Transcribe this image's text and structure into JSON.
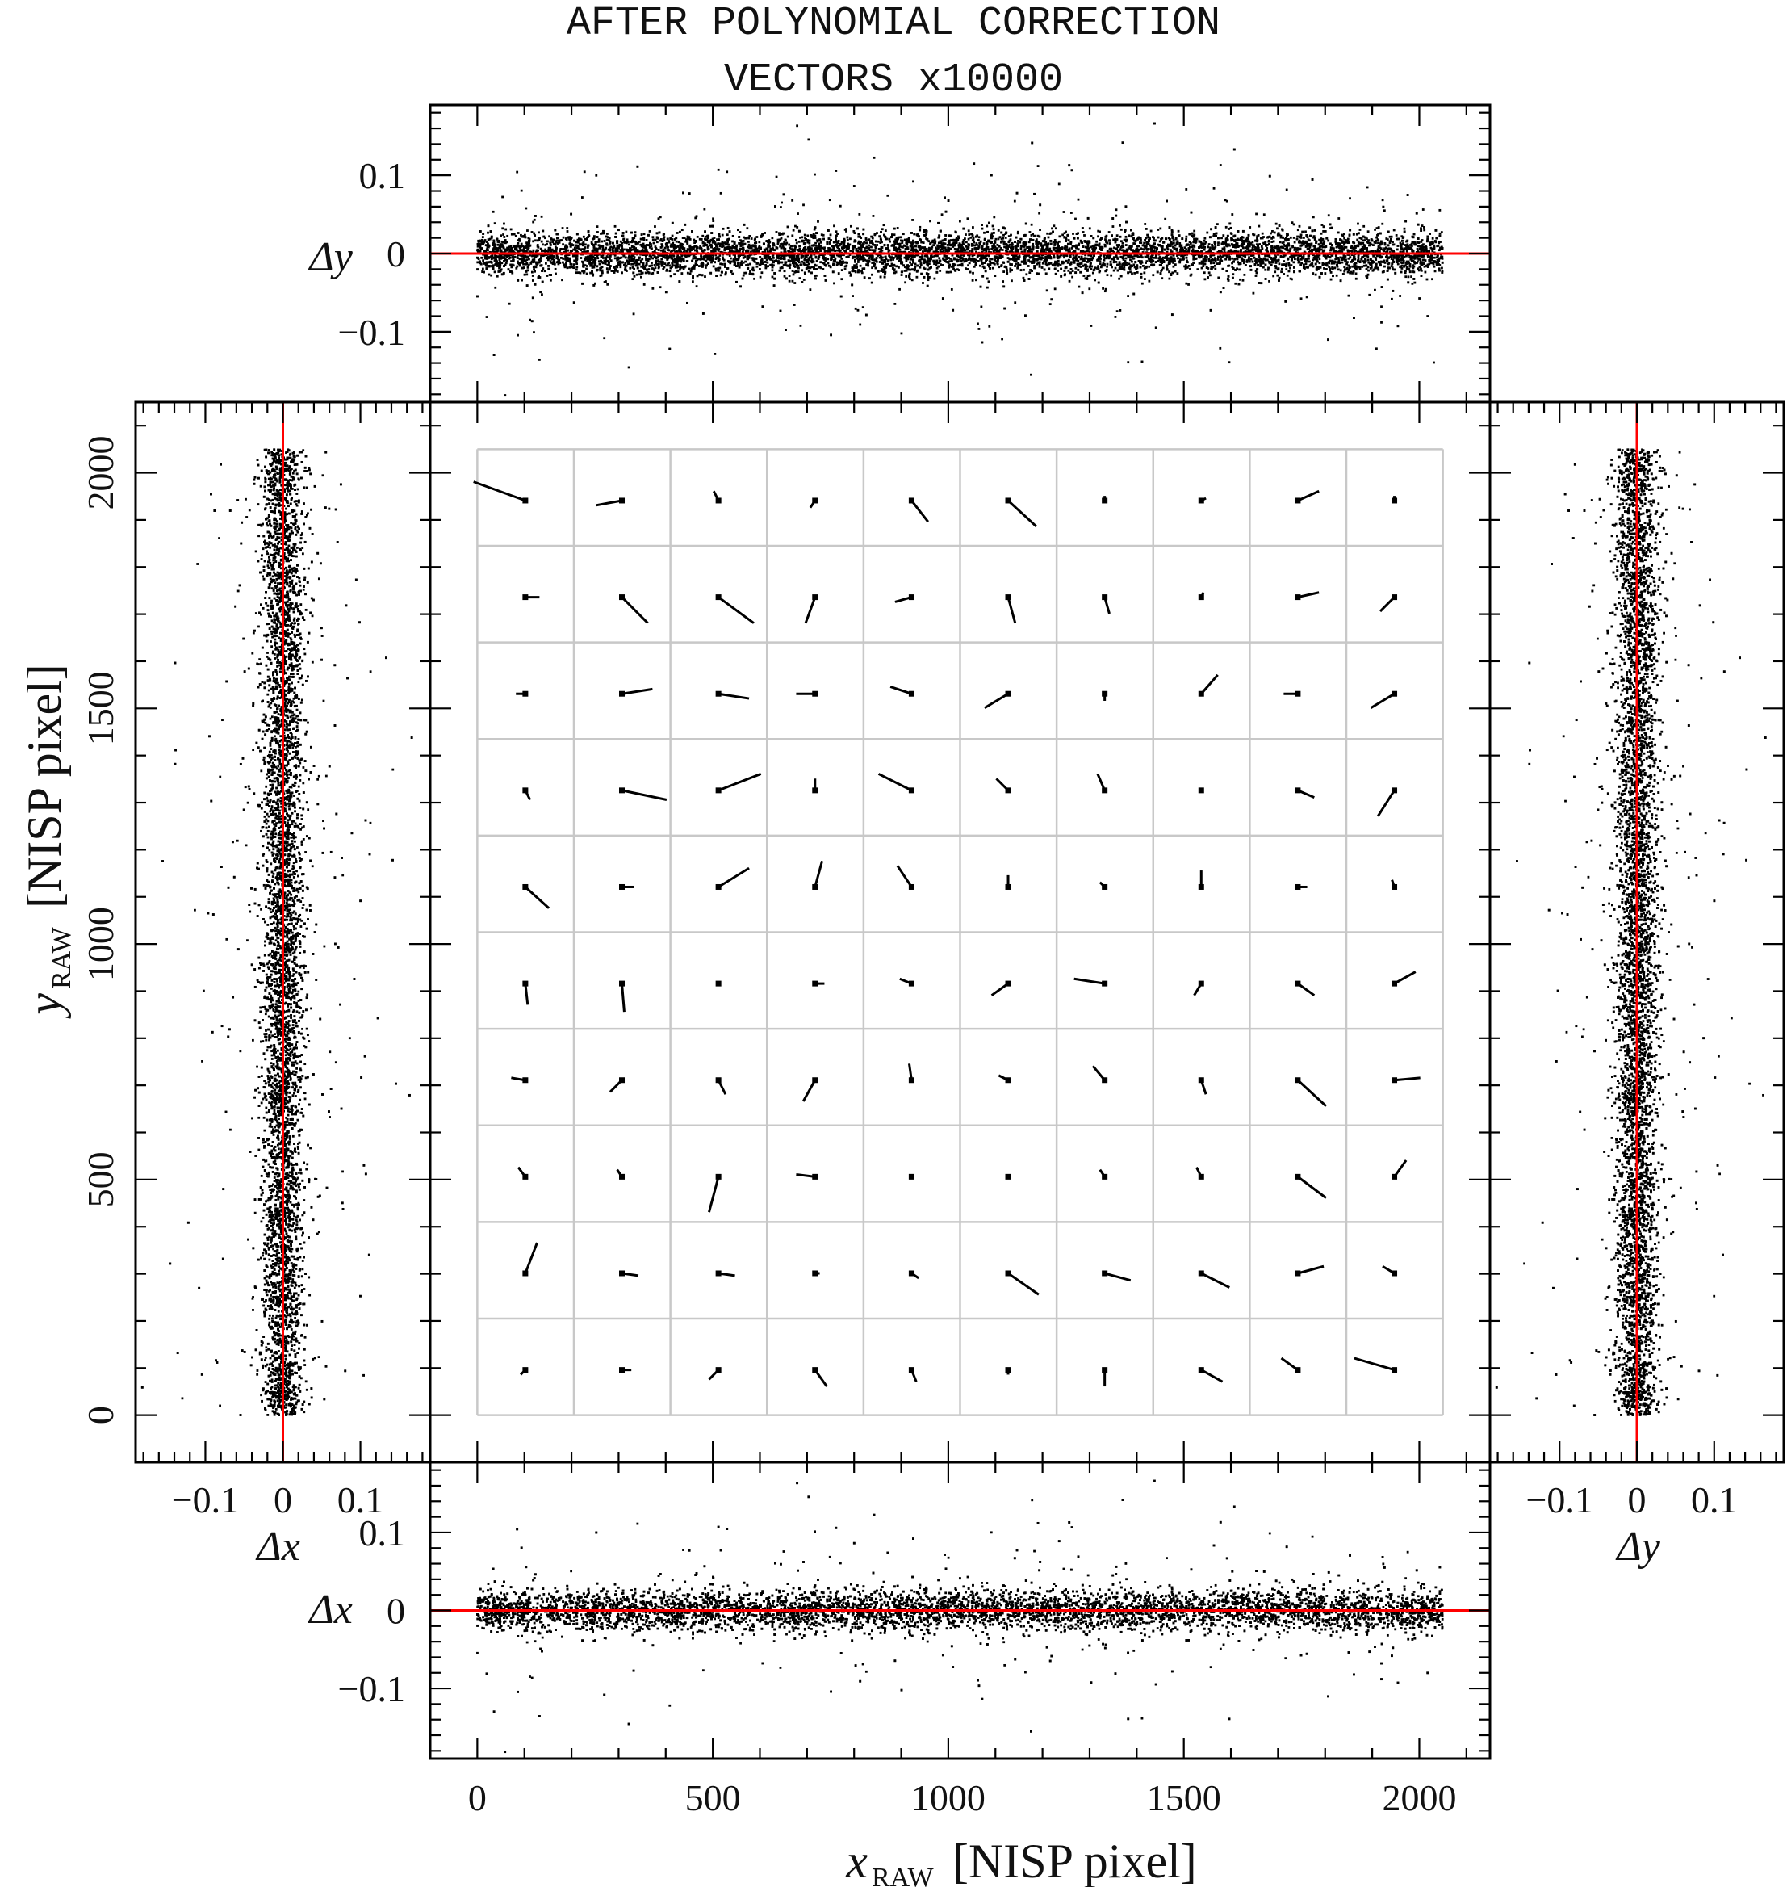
{
  "chart_data": {
    "type": "scatter",
    "title": [
      "AFTER POLYNOMIAL CORRECTION",
      "VECTORS x10000"
    ],
    "axis_color": "#000000",
    "reference_line_color": "#ff0000",
    "grid_color": "#c8c8c8",
    "main": {
      "type": "vector-field",
      "xlabel": "x",
      "xlabel_sub": "RAW",
      "xlabel_unit": "[NISP pixel]",
      "ylabel": "y",
      "ylabel_sub": "RAW",
      "ylabel_unit": "[NISP pixel]",
      "xlim": [
        -100,
        2150
      ],
      "ylim": [
        -100,
        2150
      ],
      "xticks": [
        0,
        500,
        1000,
        1500,
        2000
      ],
      "yticks": [
        0,
        500,
        1000,
        1500,
        2000
      ],
      "grid": true,
      "grid_x": [
        0,
        205,
        410,
        615,
        820,
        1025,
        1230,
        1435,
        1640,
        1845,
        2050
      ],
      "grid_y": [
        0,
        205,
        410,
        615,
        820,
        1025,
        1230,
        1435,
        1640,
        1845,
        2050
      ],
      "vector_scale": 10000,
      "vectors": [
        {
          "x": 102,
          "y": 1941,
          "dx": -0.011,
          "dy": 0.004
        },
        {
          "x": 307,
          "y": 1941,
          "dx": -0.0055,
          "dy": -0.001
        },
        {
          "x": 512,
          "y": 1941,
          "dx": -0.001,
          "dy": 0.002
        },
        {
          "x": 717,
          "y": 1941,
          "dx": -0.001,
          "dy": -0.0015
        },
        {
          "x": 922,
          "y": 1941,
          "dx": 0.0035,
          "dy": -0.0045
        },
        {
          "x": 1127,
          "y": 1941,
          "dx": 0.006,
          "dy": -0.0055
        },
        {
          "x": 1332,
          "y": 1941,
          "dx": 0.0,
          "dy": 0.001
        },
        {
          "x": 1537,
          "y": 1941,
          "dx": 0.001,
          "dy": 0.0005
        },
        {
          "x": 1742,
          "y": 1941,
          "dx": 0.0045,
          "dy": 0.002
        },
        {
          "x": 1947,
          "y": 1941,
          "dx": 0.0,
          "dy": 0.001
        },
        {
          "x": 102,
          "y": 1736,
          "dx": 0.003,
          "dy": 0.0
        },
        {
          "x": 307,
          "y": 1736,
          "dx": 0.0055,
          "dy": -0.0055
        },
        {
          "x": 512,
          "y": 1736,
          "dx": 0.0075,
          "dy": -0.0055
        },
        {
          "x": 717,
          "y": 1736,
          "dx": -0.002,
          "dy": -0.0055
        },
        {
          "x": 922,
          "y": 1736,
          "dx": -0.0035,
          "dy": -0.001
        },
        {
          "x": 1127,
          "y": 1736,
          "dx": 0.0015,
          "dy": -0.0055
        },
        {
          "x": 1332,
          "y": 1736,
          "dx": 0.001,
          "dy": -0.0035
        },
        {
          "x": 1537,
          "y": 1736,
          "dx": 0.0005,
          "dy": 0.001
        },
        {
          "x": 1742,
          "y": 1736,
          "dx": 0.0045,
          "dy": 0.001
        },
        {
          "x": 1947,
          "y": 1736,
          "dx": -0.003,
          "dy": -0.003
        },
        {
          "x": 102,
          "y": 1531,
          "dx": -0.002,
          "dy": 0.0
        },
        {
          "x": 307,
          "y": 1531,
          "dx": 0.0065,
          "dy": 0.001
        },
        {
          "x": 512,
          "y": 1531,
          "dx": 0.0065,
          "dy": -0.001
        },
        {
          "x": 717,
          "y": 1531,
          "dx": -0.004,
          "dy": 0.0
        },
        {
          "x": 922,
          "y": 1531,
          "dx": -0.0045,
          "dy": 0.0015
        },
        {
          "x": 1127,
          "y": 1531,
          "dx": -0.005,
          "dy": -0.003
        },
        {
          "x": 1332,
          "y": 1531,
          "dx": 0.0,
          "dy": -0.0015
        },
        {
          "x": 1537,
          "y": 1531,
          "dx": 0.0035,
          "dy": 0.004
        },
        {
          "x": 1742,
          "y": 1531,
          "dx": -0.003,
          "dy": 0.0
        },
        {
          "x": 1947,
          "y": 1531,
          "dx": -0.005,
          "dy": -0.003
        },
        {
          "x": 102,
          "y": 1326,
          "dx": 0.001,
          "dy": -0.002
        },
        {
          "x": 307,
          "y": 1326,
          "dx": 0.0095,
          "dy": -0.002
        },
        {
          "x": 512,
          "y": 1326,
          "dx": 0.009,
          "dy": 0.0035
        },
        {
          "x": 717,
          "y": 1326,
          "dx": 0.0,
          "dy": 0.0025
        },
        {
          "x": 922,
          "y": 1326,
          "dx": -0.007,
          "dy": 0.0035
        },
        {
          "x": 1127,
          "y": 1326,
          "dx": -0.0025,
          "dy": 0.0025
        },
        {
          "x": 1332,
          "y": 1326,
          "dx": -0.0015,
          "dy": 0.0035
        },
        {
          "x": 1537,
          "y": 1326,
          "dx": 0.0,
          "dy": 0.0005
        },
        {
          "x": 1742,
          "y": 1326,
          "dx": 0.0035,
          "dy": -0.0015
        },
        {
          "x": 1947,
          "y": 1326,
          "dx": -0.0035,
          "dy": -0.0055
        },
        {
          "x": 102,
          "y": 1121,
          "dx": 0.005,
          "dy": -0.0045
        },
        {
          "x": 307,
          "y": 1121,
          "dx": 0.0025,
          "dy": 0.0
        },
        {
          "x": 512,
          "y": 1121,
          "dx": 0.0065,
          "dy": 0.004
        },
        {
          "x": 717,
          "y": 1121,
          "dx": 0.0015,
          "dy": 0.0055
        },
        {
          "x": 922,
          "y": 1121,
          "dx": -0.003,
          "dy": 0.0045
        },
        {
          "x": 1127,
          "y": 1121,
          "dx": 0.0,
          "dy": 0.0025
        },
        {
          "x": 1332,
          "y": 1121,
          "dx": -0.001,
          "dy": 0.001
        },
        {
          "x": 1537,
          "y": 1121,
          "dx": 0.0,
          "dy": 0.0035
        },
        {
          "x": 1742,
          "y": 1121,
          "dx": 0.002,
          "dy": 0.0
        },
        {
          "x": 1947,
          "y": 1121,
          "dx": -0.0005,
          "dy": 0.0015
        },
        {
          "x": 102,
          "y": 916,
          "dx": 0.0005,
          "dy": -0.0045
        },
        {
          "x": 307,
          "y": 916,
          "dx": 0.0005,
          "dy": -0.006
        },
        {
          "x": 512,
          "y": 916,
          "dx": 0.0,
          "dy": 0.0005
        },
        {
          "x": 717,
          "y": 916,
          "dx": 0.002,
          "dy": 0.0
        },
        {
          "x": 922,
          "y": 916,
          "dx": -0.0025,
          "dy": 0.001
        },
        {
          "x": 1127,
          "y": 916,
          "dx": -0.0035,
          "dy": -0.0025
        },
        {
          "x": 1332,
          "y": 916,
          "dx": -0.0065,
          "dy": 0.001
        },
        {
          "x": 1537,
          "y": 916,
          "dx": -0.0015,
          "dy": -0.0025
        },
        {
          "x": 1742,
          "y": 916,
          "dx": 0.0035,
          "dy": -0.0025
        },
        {
          "x": 1947,
          "y": 916,
          "dx": 0.0045,
          "dy": 0.0025
        },
        {
          "x": 102,
          "y": 711,
          "dx": -0.003,
          "dy": 0.0005
        },
        {
          "x": 307,
          "y": 711,
          "dx": -0.0025,
          "dy": -0.0025
        },
        {
          "x": 512,
          "y": 711,
          "dx": 0.0015,
          "dy": -0.003
        },
        {
          "x": 717,
          "y": 711,
          "dx": -0.0025,
          "dy": -0.0045
        },
        {
          "x": 922,
          "y": 711,
          "dx": -0.0005,
          "dy": 0.0035
        },
        {
          "x": 1127,
          "y": 711,
          "dx": -0.002,
          "dy": 0.001
        },
        {
          "x": 1332,
          "y": 711,
          "dx": -0.0025,
          "dy": 0.003
        },
        {
          "x": 1537,
          "y": 711,
          "dx": 0.001,
          "dy": -0.003
        },
        {
          "x": 1742,
          "y": 711,
          "dx": 0.006,
          "dy": -0.0055
        },
        {
          "x": 1947,
          "y": 711,
          "dx": 0.0055,
          "dy": 0.0005
        },
        {
          "x": 102,
          "y": 506,
          "dx": -0.0015,
          "dy": 0.002
        },
        {
          "x": 307,
          "y": 506,
          "dx": -0.001,
          "dy": 0.0015
        },
        {
          "x": 512,
          "y": 506,
          "dx": -0.002,
          "dy": -0.0075
        },
        {
          "x": 717,
          "y": 506,
          "dx": -0.004,
          "dy": 0.0005
        },
        {
          "x": 922,
          "y": 506,
          "dx": 0.0,
          "dy": 0.0
        },
        {
          "x": 1127,
          "y": 506,
          "dx": 0.0,
          "dy": 0.0
        },
        {
          "x": 1332,
          "y": 506,
          "dx": -0.001,
          "dy": 0.0015
        },
        {
          "x": 1537,
          "y": 506,
          "dx": -0.001,
          "dy": 0.002
        },
        {
          "x": 1742,
          "y": 506,
          "dx": 0.006,
          "dy": -0.0045
        },
        {
          "x": 1947,
          "y": 506,
          "dx": 0.0025,
          "dy": 0.0035
        },
        {
          "x": 102,
          "y": 301,
          "dx": 0.0025,
          "dy": 0.0065
        },
        {
          "x": 307,
          "y": 301,
          "dx": 0.0035,
          "dy": -0.0005
        },
        {
          "x": 512,
          "y": 301,
          "dx": 0.0035,
          "dy": -0.0005
        },
        {
          "x": 717,
          "y": 301,
          "dx": 0.001,
          "dy": 0.0
        },
        {
          "x": 922,
          "y": 301,
          "dx": 0.0015,
          "dy": -0.001
        },
        {
          "x": 1127,
          "y": 301,
          "dx": 0.0065,
          "dy": -0.0045
        },
        {
          "x": 1332,
          "y": 301,
          "dx": 0.0055,
          "dy": -0.0015
        },
        {
          "x": 1537,
          "y": 301,
          "dx": 0.006,
          "dy": -0.003
        },
        {
          "x": 1742,
          "y": 301,
          "dx": 0.0055,
          "dy": 0.0015
        },
        {
          "x": 1947,
          "y": 301,
          "dx": -0.0025,
          "dy": 0.0015
        },
        {
          "x": 102,
          "y": 96,
          "dx": -0.001,
          "dy": -0.001
        },
        {
          "x": 307,
          "y": 96,
          "dx": 0.002,
          "dy": 0.0
        },
        {
          "x": 512,
          "y": 96,
          "dx": -0.002,
          "dy": -0.002
        },
        {
          "x": 717,
          "y": 96,
          "dx": 0.0025,
          "dy": -0.0035
        },
        {
          "x": 922,
          "y": 96,
          "dx": 0.001,
          "dy": -0.0025
        },
        {
          "x": 1127,
          "y": 96,
          "dx": 0.0,
          "dy": -0.001
        },
        {
          "x": 1332,
          "y": 96,
          "dx": 0.0,
          "dy": -0.0035
        },
        {
          "x": 1537,
          "y": 96,
          "dx": 0.0045,
          "dy": -0.0025
        },
        {
          "x": 1742,
          "y": 96,
          "dx": -0.0035,
          "dy": 0.0025
        },
        {
          "x": 1947,
          "y": 96,
          "dx": -0.0085,
          "dy": 0.0025
        }
      ]
    },
    "top_panel": {
      "type": "scatter",
      "ylabel": "Δy",
      "xlim": [
        -100,
        2150
      ],
      "ylim": [
        -0.19,
        0.19
      ],
      "yticks": [
        -0.1,
        0,
        0.1
      ],
      "ytick_labels": [
        "−0.1",
        "0",
        "0.1"
      ],
      "reference_line": 0,
      "x_range": [
        0,
        2050
      ],
      "n_points": 9000,
      "sigma_core": 0.0135,
      "outlier_fraction": 0.06,
      "outlier_sigma": 0.06
    },
    "bottom_panel": {
      "type": "scatter",
      "ylabel": "Δx",
      "xlim": [
        -100,
        2150
      ],
      "ylim": [
        -0.19,
        0.19
      ],
      "yticks": [
        -0.1,
        0,
        0.1
      ],
      "ytick_labels": [
        "−0.1",
        "0",
        "0.1"
      ],
      "xticks": [
        0,
        500,
        1000,
        1500,
        2000
      ],
      "reference_line": 0,
      "x_range": [
        0,
        2050
      ],
      "n_points": 9000,
      "sigma_core": 0.013,
      "outlier_fraction": 0.06,
      "outlier_sigma": 0.06
    },
    "left_panel": {
      "type": "scatter",
      "xlabel": "Δx",
      "xlim": [
        -0.19,
        0.19
      ],
      "ylim": [
        -100,
        2150
      ],
      "xticks": [
        -0.1,
        0,
        0.1
      ],
      "xtick_labels": [
        "−0.1",
        "0",
        "0.1"
      ],
      "yticks": [
        0,
        500,
        1000,
        1500,
        2000
      ],
      "reference_line": 0,
      "y_range": [
        0,
        2050
      ],
      "n_points": 9000,
      "sigma_core": 0.013,
      "outlier_fraction": 0.06,
      "outlier_sigma": 0.06
    },
    "right_panel": {
      "type": "scatter",
      "xlabel": "Δy",
      "xlim": [
        -0.19,
        0.19
      ],
      "ylim": [
        -100,
        2150
      ],
      "xticks": [
        -0.1,
        0,
        0.1
      ],
      "xtick_labels": [
        "−0.1",
        "0",
        "0.1"
      ],
      "reference_line": 0,
      "y_range": [
        0,
        2050
      ],
      "n_points": 9000,
      "sigma_core": 0.0135,
      "outlier_fraction": 0.06,
      "outlier_sigma": 0.06
    }
  }
}
